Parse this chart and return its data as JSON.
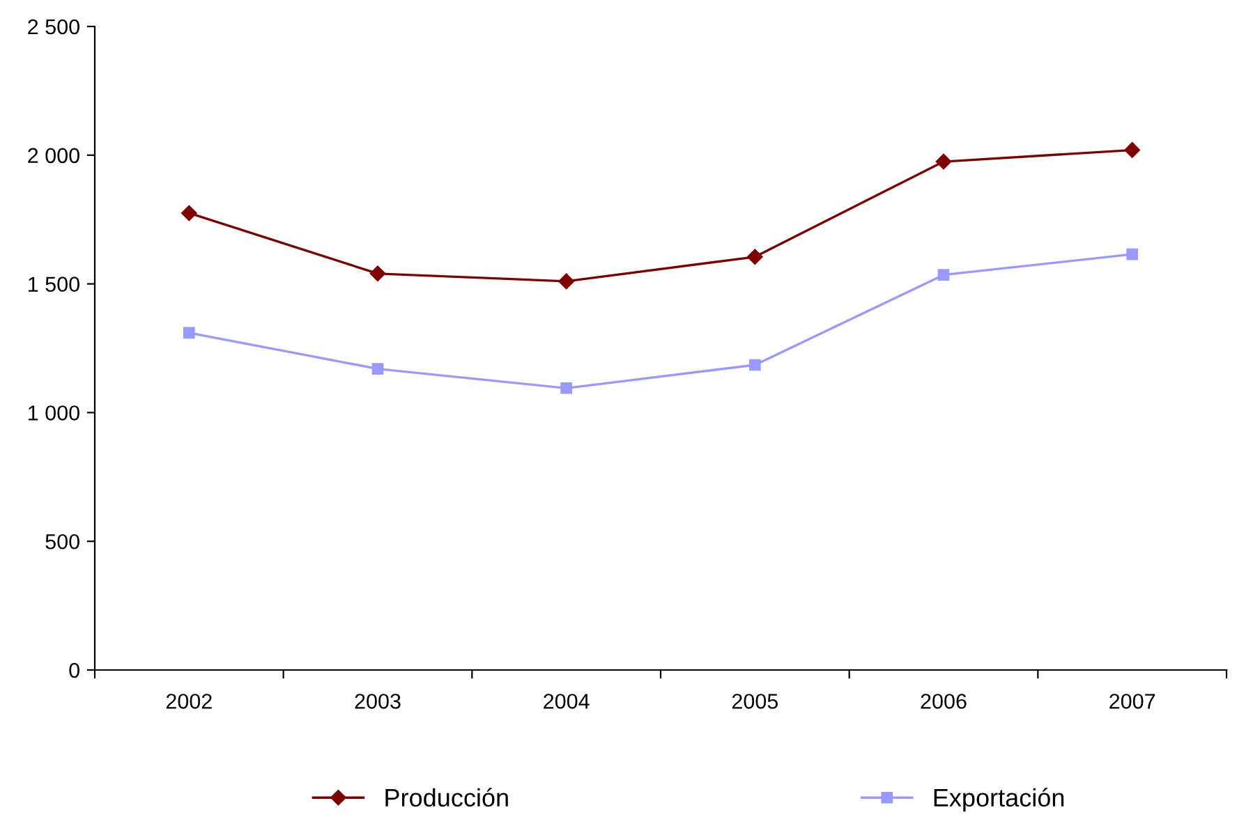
{
  "chart_data": {
    "type": "line",
    "categories": [
      "2002",
      "2003",
      "2004",
      "2005",
      "2006",
      "2007"
    ],
    "series": [
      {
        "name": "Producción",
        "color": "#800000",
        "marker": "diamond",
        "values": [
          1775,
          1540,
          1510,
          1605,
          1975,
          2020
        ]
      },
      {
        "name": "Exportación",
        "color": "#9999ff",
        "marker": "square",
        "values": [
          1310,
          1170,
          1095,
          1185,
          1535,
          1615
        ]
      }
    ],
    "ylim": [
      0,
      2500
    ],
    "yticks": [
      0,
      500,
      {
        "value": 1000,
        "label": "1 000"
      },
      {
        "value": 1500,
        "label": "1 500"
      },
      {
        "value": 2000,
        "label": "2 000"
      },
      {
        "value": 2500,
        "label": "2 500"
      }
    ],
    "grid": false,
    "legend": "bottom",
    "line_style": "solid"
  }
}
